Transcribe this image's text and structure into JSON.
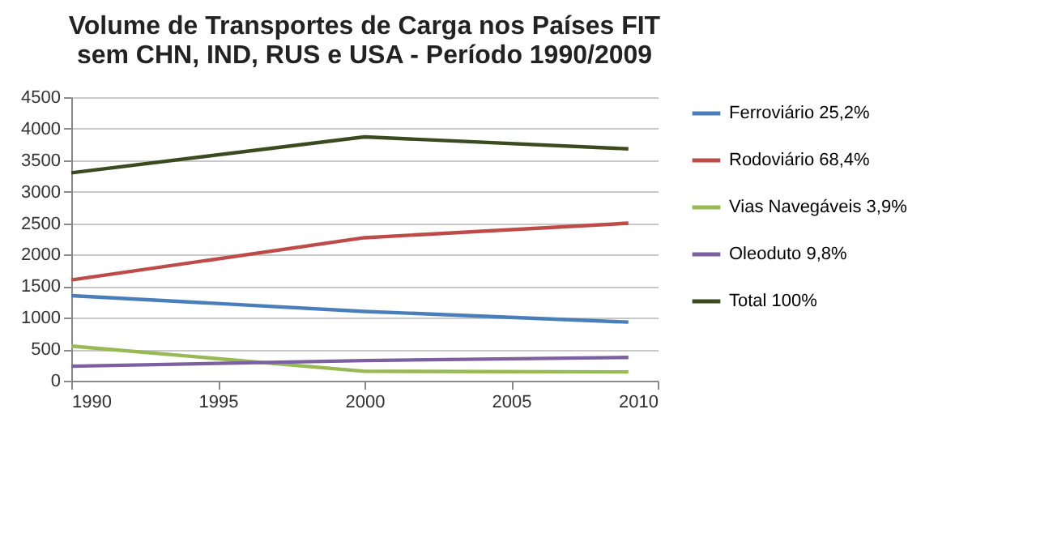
{
  "chart_data": {
    "type": "line",
    "title": "Volume de Transportes de Carga nos Países FIT sem CHN, IND, RUS e USA - Período 1990/2009",
    "x": [
      1990,
      2000,
      2009
    ],
    "series": [
      {
        "name": "Ferroviário  25,2%",
        "color": "#4a7ebb",
        "values": [
          1350,
          1100,
          930
        ]
      },
      {
        "name": "Rodoviário  68,4%",
        "color": "#be4b48",
        "values": [
          1600,
          2270,
          2500
        ]
      },
      {
        "name": "Vias Navegáveis  3,9%",
        "color": "#98b954",
        "values": [
          550,
          150,
          140
        ]
      },
      {
        "name": "Oleoduto  9,8%",
        "color": "#7d60a0",
        "values": [
          230,
          320,
          370
        ]
      },
      {
        "name": "Total  100%",
        "color": "#3b4a1f",
        "values": [
          3300,
          3870,
          3680
        ]
      }
    ],
    "xlim": [
      1990,
      2010
    ],
    "xticks": [
      1990,
      1995,
      2000,
      2005,
      2010
    ],
    "ylim": [
      0,
      4500
    ],
    "yticks": [
      0,
      500,
      1000,
      1500,
      2000,
      2500,
      3000,
      3500,
      4000,
      4500
    ],
    "grid": "y",
    "legend": "right",
    "marker": "none",
    "line_style": "solid"
  }
}
